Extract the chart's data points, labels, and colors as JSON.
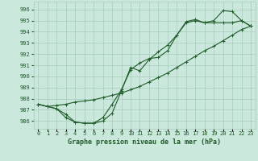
{
  "title": "Graphe pression niveau de la mer (hPa)",
  "background_color": "#cbe8dc",
  "grid_color": "#a8ccbc",
  "line_color": "#1e5c28",
  "x_ticks": [
    0,
    1,
    2,
    3,
    4,
    5,
    6,
    7,
    8,
    9,
    10,
    11,
    12,
    13,
    14,
    15,
    16,
    17,
    18,
    19,
    20,
    21,
    22,
    23
  ],
  "xlim": [
    -0.5,
    23.5
  ],
  "ylim": [
    985.3,
    996.7
  ],
  "yticks": [
    986,
    987,
    988,
    989,
    990,
    991,
    992,
    993,
    994,
    995,
    996
  ],
  "line1_x": [
    0,
    1,
    2,
    3,
    4,
    5,
    6,
    7,
    8,
    9,
    10,
    11,
    12,
    13,
    14,
    15,
    16,
    17,
    18,
    19,
    20,
    21,
    22,
    23
  ],
  "line1_y": [
    987.5,
    987.3,
    987.4,
    987.5,
    987.7,
    987.8,
    987.9,
    988.1,
    988.3,
    988.5,
    988.8,
    989.1,
    989.5,
    989.9,
    990.3,
    990.8,
    991.3,
    991.8,
    992.3,
    992.7,
    993.2,
    993.7,
    994.2,
    994.5
  ],
  "line2_x": [
    0,
    1,
    2,
    3,
    4,
    5,
    6,
    7,
    8,
    9,
    10,
    11,
    12,
    13,
    14,
    15,
    16,
    17,
    18,
    19,
    20,
    21,
    22,
    23
  ],
  "line2_y": [
    987.5,
    987.3,
    987.1,
    986.6,
    985.9,
    985.8,
    985.8,
    986.0,
    986.7,
    988.7,
    990.8,
    990.5,
    991.5,
    992.2,
    992.8,
    993.7,
    994.8,
    995.0,
    994.8,
    995.0,
    995.9,
    995.8,
    995.0,
    994.5
  ],
  "line3_x": [
    0,
    1,
    2,
    3,
    4,
    5,
    6,
    7,
    8,
    9,
    10,
    11,
    12,
    13,
    14,
    15,
    16,
    17,
    18,
    19,
    20,
    21,
    22,
    23
  ],
  "line3_y": [
    987.5,
    987.3,
    987.1,
    986.3,
    985.9,
    985.8,
    985.8,
    986.3,
    987.5,
    988.8,
    990.6,
    991.2,
    991.6,
    991.7,
    992.3,
    993.7,
    994.9,
    995.1,
    994.8,
    994.8,
    994.8,
    994.8,
    995.0,
    994.5
  ],
  "title_fontsize": 6.0,
  "tick_fontsize": 5.0
}
